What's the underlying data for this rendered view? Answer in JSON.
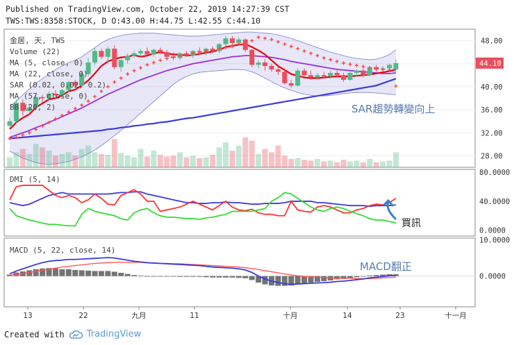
{
  "header": {
    "line1": "Published on TradingView.com, October 22, 2019 14:27:39 CST",
    "line2": "TWS:TWS:8358:STOCK, D O:43.00 H:44.75 L:42.55 C:44.10"
  },
  "footer": {
    "created_with": "Created with",
    "brand": "TradingView"
  },
  "colors": {
    "up": "#53b987",
    "down": "#eb4d5c",
    "ma5": "#e8000f",
    "ma22": "#9b30d9",
    "ma57": "#3a3ae0",
    "sar": "#ff4545",
    "bb": "#7b7bd0",
    "dip": "#3a3ae0",
    "dim": "#ff3333",
    "adx": "#33dd33",
    "macd": "#3a3ae0",
    "signal": "#ff5555",
    "hist": "#555555"
  },
  "chart_data": [
    {
      "type": "candlestick",
      "legend": [
        "金居, 天, TWS",
        "Volume (22)",
        "MA (5, close, 0)",
        "MA (22, close, 0)",
        "SAR (0.02, 0.02, 0.2)",
        "MA (57, close, 0)",
        "BB (20, 2)"
      ],
      "annotation": "SAR趨勢轉變向上",
      "ylim": [
        26,
        50
      ],
      "yticks": [
        "48.00",
        "44.00",
        "40.00",
        "36.00",
        "32.00",
        "28.00"
      ],
      "last_price": "44.10",
      "x_labels": [
        "13",
        "22",
        "九月",
        "11",
        "十月",
        "14",
        "23",
        "十一月"
      ],
      "ohlc": [
        [
          33.2,
          34.6,
          32.6,
          34.0
        ],
        [
          34.0,
          37.8,
          33.6,
          37.2
        ],
        [
          37.2,
          37.8,
          35.0,
          35.8
        ],
        [
          35.8,
          37.0,
          35.2,
          36.4
        ],
        [
          36.4,
          38.5,
          35.8,
          38.2
        ],
        [
          38.2,
          38.6,
          37.2,
          38.0
        ],
        [
          38.0,
          39.2,
          37.6,
          38.8
        ],
        [
          38.8,
          39.4,
          38.0,
          38.5
        ],
        [
          38.5,
          39.6,
          38.2,
          39.4
        ],
        [
          39.4,
          41.0,
          39.0,
          40.8
        ],
        [
          40.8,
          41.2,
          39.8,
          40.2
        ],
        [
          40.2,
          42.6,
          40.0,
          42.2
        ],
        [
          42.2,
          45.0,
          41.8,
          44.2
        ],
        [
          44.2,
          46.8,
          43.8,
          46.2
        ],
        [
          46.2,
          46.6,
          44.8,
          45.2
        ],
        [
          45.2,
          47.0,
          44.0,
          46.6
        ],
        [
          46.6,
          47.2,
          43.0,
          43.4
        ],
        [
          43.4,
          45.0,
          42.6,
          44.6
        ],
        [
          44.6,
          45.8,
          44.0,
          45.4
        ],
        [
          45.4,
          46.2,
          45.0,
          45.8
        ],
        [
          45.8,
          46.6,
          45.2,
          46.2
        ],
        [
          46.2,
          46.8,
          45.4,
          45.6
        ],
        [
          45.6,
          46.6,
          45.2,
          46.4
        ],
        [
          46.4,
          46.8,
          45.6,
          46.0
        ],
        [
          46.0,
          46.4,
          44.8,
          45.2
        ],
        [
          45.2,
          46.0,
          44.6,
          45.0
        ],
        [
          45.0,
          46.0,
          44.6,
          45.8
        ],
        [
          45.8,
          46.2,
          45.2,
          45.4
        ],
        [
          45.4,
          46.4,
          45.0,
          46.2
        ],
        [
          46.2,
          46.8,
          45.6,
          46.0
        ],
        [
          46.0,
          46.8,
          45.4,
          46.6
        ],
        [
          46.6,
          47.0,
          45.8,
          46.2
        ],
        [
          46.2,
          47.6,
          45.8,
          47.4
        ],
        [
          47.4,
          48.8,
          46.8,
          48.4
        ],
        [
          48.4,
          48.8,
          47.0,
          47.6
        ],
        [
          47.6,
          48.6,
          47.2,
          48.2
        ],
        [
          48.2,
          48.4,
          46.0,
          46.4
        ],
        [
          46.4,
          46.6,
          43.4,
          43.8
        ],
        [
          43.8,
          44.6,
          43.2,
          44.2
        ],
        [
          44.2,
          44.8,
          42.8,
          43.6
        ],
        [
          43.6,
          44.0,
          42.6,
          43.0
        ],
        [
          43.0,
          43.8,
          42.0,
          42.6
        ],
        [
          42.6,
          43.2,
          40.4,
          40.6
        ],
        [
          40.6,
          41.2,
          39.8,
          40.2
        ],
        [
          40.2,
          43.2,
          40.0,
          42.8
        ],
        [
          42.8,
          43.2,
          41.8,
          42.0
        ],
        [
          42.0,
          42.8,
          41.2,
          41.6
        ],
        [
          41.6,
          42.4,
          41.2,
          42.0
        ],
        [
          42.0,
          42.6,
          41.4,
          41.8
        ],
        [
          41.8,
          42.8,
          41.4,
          42.4
        ],
        [
          42.4,
          42.8,
          41.6,
          42.0
        ],
        [
          42.0,
          42.4,
          40.8,
          41.2
        ],
        [
          41.2,
          42.6,
          41.0,
          42.4
        ],
        [
          42.4,
          43.0,
          41.8,
          42.8
        ],
        [
          42.8,
          43.2,
          41.6,
          42.0
        ],
        [
          42.0,
          43.6,
          41.8,
          43.4
        ],
        [
          43.4,
          43.8,
          42.6,
          43.0
        ],
        [
          43.0,
          43.6,
          42.6,
          43.2
        ],
        [
          43.2,
          44.0,
          42.8,
          43.8
        ],
        [
          43.0,
          44.75,
          42.55,
          44.1
        ]
      ],
      "volume": [
        12,
        18,
        22,
        16,
        28,
        24,
        20,
        14,
        16,
        18,
        14,
        22,
        26,
        18,
        16,
        15,
        34,
        17,
        14,
        12,
        22,
        13,
        20,
        15,
        13,
        14,
        18,
        12,
        14,
        11,
        12,
        15,
        24,
        30,
        20,
        26,
        36,
        32,
        16,
        22,
        18,
        26,
        14,
        10,
        11,
        9,
        8,
        10,
        7,
        8,
        6,
        9,
        7,
        8,
        6,
        10,
        6,
        7,
        8,
        18
      ],
      "ma5": [
        32.6,
        33.8,
        34.6,
        35.2,
        36.4,
        37.1,
        37.8,
        38.0,
        38.5,
        39.2,
        39.5,
        40.2,
        41.1,
        42.3,
        43.6,
        44.4,
        44.8,
        45.1,
        45.2,
        45.5,
        45.2,
        45.4,
        45.8,
        46.0,
        45.8,
        45.6,
        45.6,
        45.4,
        45.5,
        45.7,
        45.9,
        46.1,
        46.4,
        46.9,
        47.1,
        47.3,
        47.4,
        46.9,
        46.3,
        45.6,
        44.6,
        43.6,
        42.9,
        42.2,
        41.9,
        41.6,
        41.5,
        41.5,
        41.6,
        41.7,
        41.8,
        41.8,
        41.8,
        41.9,
        42.0,
        42.1,
        42.3,
        42.5,
        42.7,
        43.0
      ],
      "ma22": [
        31.2,
        31.6,
        32.0,
        32.4,
        32.9,
        33.3,
        33.8,
        34.3,
        34.8,
        35.3,
        35.8,
        36.3,
        36.9,
        37.5,
        38.1,
        38.7,
        39.2,
        39.7,
        40.2,
        40.7,
        41.2,
        41.6,
        42.0,
        42.4,
        42.8,
        43.1,
        43.4,
        43.7,
        44.0,
        44.2,
        44.4,
        44.6,
        44.8,
        45.0,
        45.2,
        45.3,
        45.4,
        45.4,
        45.3,
        45.2,
        45.1,
        44.9,
        44.7,
        44.4,
        44.2,
        44.0,
        43.8,
        43.6,
        43.4,
        43.2,
        43.0,
        42.9,
        42.8,
        42.7,
        42.6,
        42.5,
        42.4,
        42.3,
        42.3,
        42.4
      ],
      "ma57": [
        31.0,
        31.1,
        31.2,
        31.3,
        31.4,
        31.5,
        31.6,
        31.7,
        31.8,
        31.9,
        32.0,
        32.1,
        32.2,
        32.3,
        32.4,
        32.6,
        32.7,
        32.9,
        33.0,
        33.2,
        33.3,
        33.5,
        33.6,
        33.8,
        33.9,
        34.1,
        34.3,
        34.5,
        34.6,
        34.8,
        35.0,
        35.2,
        35.4,
        35.6,
        35.8,
        36.0,
        36.2,
        36.4,
        36.6,
        36.8,
        37.0,
        37.2,
        37.4,
        37.6,
        37.8,
        38.0,
        38.2,
        38.4,
        38.6,
        38.8,
        39.0,
        39.2,
        39.4,
        39.6,
        39.8,
        40.0,
        40.2,
        40.6,
        41.0,
        41.4
      ],
      "bb_upper": [
        36.6,
        37.5,
        38.6,
        39.6,
        40.6,
        41.4,
        42.2,
        43.0,
        43.6,
        44.2,
        44.6,
        45.2,
        46.0,
        46.8,
        47.6,
        48.2,
        48.6,
        48.9,
        49.1,
        49.2,
        49.3,
        49.3,
        49.3,
        49.2,
        49.1,
        49.0,
        48.9,
        48.8,
        48.8,
        48.8,
        48.9,
        49.0,
        49.1,
        49.2,
        49.3,
        49.4,
        49.5,
        49.5,
        49.4,
        49.3,
        49.2,
        49.0,
        48.7,
        48.4,
        48.0,
        47.6,
        47.2,
        46.8,
        46.4,
        46.0,
        45.7,
        45.4,
        45.1,
        44.9,
        44.8,
        44.7,
        44.8,
        45.1,
        45.6,
        46.4
      ],
      "bb_lower": [
        28.8,
        28.2,
        27.6,
        27.2,
        26.8,
        26.6,
        26.5,
        26.6,
        26.8,
        27.0,
        27.4,
        27.8,
        28.4,
        29.0,
        29.8,
        30.6,
        31.5,
        32.4,
        33.4,
        34.4,
        35.4,
        36.4,
        37.4,
        38.4,
        39.4,
        40.4,
        41.2,
        41.8,
        42.2,
        42.5,
        42.6,
        42.7,
        42.8,
        42.9,
        43.0,
        43.0,
        42.9,
        42.6,
        42.1,
        41.5,
        40.9,
        40.3,
        39.8,
        39.4,
        39.0,
        38.7,
        38.5,
        38.4,
        38.4,
        38.5,
        38.6,
        38.8,
        38.9,
        39.0,
        39.0,
        39.0,
        38.9,
        38.8,
        38.7,
        38.6
      ],
      "sar": [
        31.0,
        31.2,
        31.6,
        32.0,
        32.6,
        33.2,
        33.8,
        34.4,
        35.0,
        35.6,
        36.2,
        36.8,
        37.5,
        38.3,
        39.2,
        40.0,
        40.8,
        41.5,
        42.2,
        42.8,
        43.3,
        43.8,
        44.2,
        44.6,
        44.9,
        45.2,
        45.4,
        45.6,
        45.8,
        46.0,
        46.2,
        46.4,
        46.6,
        46.8,
        47.0,
        47.4,
        47.8,
        48.0,
        48.6,
        48.4,
        48.2,
        47.8,
        47.4,
        47.0,
        46.6,
        46.2,
        45.8,
        45.4,
        45.0,
        44.7,
        44.4,
        44.1,
        43.9,
        43.7,
        43.5,
        43.3,
        43.1,
        43.0,
        42.9,
        40.1
      ]
    },
    {
      "type": "line",
      "legend": "DMI (5, 14)",
      "yticks": [
        "80.0000",
        "40.0000",
        "0.0000"
      ],
      "ylim": [
        -8,
        84
      ],
      "annotation": "買訊",
      "series": [
        {
          "name": "+DI",
          "values": [
            38,
            36,
            34,
            36,
            40,
            44,
            48,
            50,
            52,
            50,
            50,
            50,
            50,
            50,
            50,
            50,
            51,
            52,
            52,
            53,
            53,
            50,
            48,
            46,
            44,
            42,
            40,
            38,
            38,
            37,
            37,
            38,
            38,
            39,
            38,
            38,
            37,
            36,
            36,
            37,
            37,
            37,
            38,
            40,
            40,
            40,
            40,
            38,
            38,
            37,
            36,
            35,
            34,
            34,
            34,
            33,
            34,
            34,
            34,
            35
          ]
        },
        {
          "name": "-DI",
          "values": [
            42,
            60,
            62,
            62,
            62,
            62,
            55,
            48,
            45,
            48,
            45,
            38,
            42,
            50,
            44,
            36,
            35,
            48,
            52,
            56,
            50,
            40,
            40,
            26,
            28,
            30,
            32,
            36,
            40,
            36,
            32,
            28,
            34,
            40,
            32,
            28,
            27,
            29,
            24,
            22,
            22,
            20,
            20,
            40,
            28,
            26,
            25,
            32,
            34,
            32,
            28,
            24,
            24,
            28,
            30,
            34,
            36,
            35,
            38,
            44
          ]
        },
        {
          "name": "ADX",
          "values": [
            30,
            20,
            17,
            14,
            12,
            10,
            8,
            8,
            7,
            6,
            6,
            22,
            30,
            26,
            24,
            22,
            20,
            16,
            14,
            24,
            28,
            30,
            24,
            20,
            18,
            18,
            17,
            16,
            16,
            15,
            17,
            18,
            20,
            22,
            26,
            26,
            26,
            26,
            28,
            30,
            40,
            45,
            52,
            50,
            44,
            38,
            32,
            28,
            26,
            30,
            32,
            30,
            26,
            23,
            20,
            16,
            14,
            14,
            12,
            10
          ]
        }
      ]
    },
    {
      "type": "line",
      "legend": "MACD (5, 22, close, 14)",
      "yticks": [
        "10.0000",
        "0.0000"
      ],
      "ylim": [
        -8.5,
        10.5
      ],
      "annotation": "MACD翻正",
      "series": [
        {
          "name": "MACD",
          "values": [
            0.6,
            1.4,
            2.0,
            2.6,
            3.2,
            3.7,
            4.1,
            4.3,
            4.4,
            4.6,
            4.6,
            4.7,
            4.8,
            4.9,
            5.0,
            5.1,
            5.0,
            4.7,
            4.4,
            4.1,
            3.9,
            3.7,
            3.6,
            3.5,
            3.4,
            3.3,
            3.2,
            3.1,
            3.0,
            2.9,
            2.7,
            2.5,
            2.4,
            2.3,
            2.2,
            2.0,
            1.7,
            1.0,
            0.0,
            -0.8,
            -1.4,
            -1.8,
            -2.1,
            -2.3,
            -2.2,
            -2.1,
            -2.0,
            -1.9,
            -1.8,
            -1.7,
            -1.5,
            -1.4,
            -1.2,
            -1.0,
            -0.8,
            -0.5,
            -0.3,
            -0.1,
            0.1,
            0.2
          ]
        },
        {
          "name": "Signal",
          "values": [
            0.2,
            0.4,
            0.7,
            1.0,
            1.3,
            1.6,
            1.9,
            2.2,
            2.5,
            2.7,
            2.9,
            3.1,
            3.3,
            3.5,
            3.6,
            3.7,
            3.8,
            3.8,
            3.8,
            3.8,
            3.8,
            3.7,
            3.6,
            3.5,
            3.5,
            3.4,
            3.4,
            3.3,
            3.2,
            3.1,
            3.0,
            2.9,
            2.8,
            2.7,
            2.6,
            2.5,
            2.3,
            2.1,
            1.8,
            1.5,
            1.2,
            0.9,
            0.6,
            0.3,
            0.1,
            -0.1,
            -0.2,
            -0.3,
            -0.4,
            -0.5,
            -0.6,
            -0.6,
            -0.6,
            -0.7,
            -0.7,
            -0.7,
            -0.6,
            -0.5,
            -0.4,
            -0.3
          ]
        },
        {
          "name": "Histogram",
          "values": [
            0.4,
            1.0,
            1.3,
            1.6,
            1.9,
            2.1,
            2.2,
            2.1,
            1.9,
            1.9,
            1.7,
            1.6,
            1.5,
            1.4,
            1.4,
            1.4,
            1.2,
            0.9,
            0.6,
            0.3,
            0.1,
            0.0,
            0.0,
            0.0,
            -0.1,
            -0.1,
            -0.2,
            -0.2,
            -0.2,
            -0.2,
            -0.3,
            -0.4,
            -0.4,
            -0.4,
            -0.4,
            -0.5,
            -0.6,
            -1.1,
            -1.8,
            -2.3,
            -2.6,
            -2.7,
            -2.7,
            -2.6,
            -2.3,
            -2.0,
            -1.8,
            -1.6,
            -1.4,
            -1.2,
            -0.9,
            -0.8,
            -0.6,
            -0.3,
            -0.1,
            0.2,
            0.3,
            0.4,
            0.5,
            0.5
          ]
        }
      ]
    }
  ]
}
